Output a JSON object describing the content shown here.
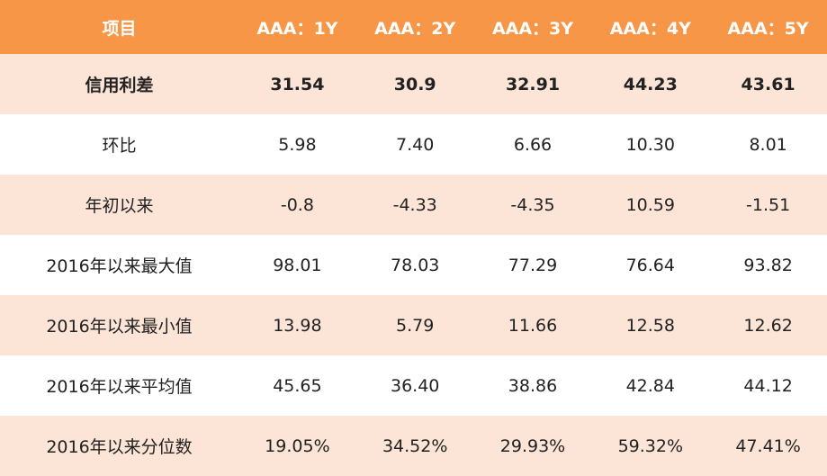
{
  "table": {
    "header": [
      "项目",
      "AAA：1Y",
      "AAA：2Y",
      "AAA：3Y",
      "AAA：4Y",
      "AAA：5Y"
    ],
    "rows": [
      [
        "信用利差",
        "31.54",
        "30.9",
        "32.91",
        "44.23",
        "43.61"
      ],
      [
        "环比",
        "5.98",
        "7.40",
        "6.66",
        "10.30",
        "8.01"
      ],
      [
        "年初以来",
        "-0.8",
        "-4.33",
        "-4.35",
        "10.59",
        "-1.51"
      ],
      [
        "2016年以来最大值",
        "98.01",
        "78.03",
        "77.29",
        "76.64",
        "93.82"
      ],
      [
        "2016年以来最小值",
        "13.98",
        "5.79",
        "11.66",
        "12.58",
        "12.62"
      ],
      [
        "2016年以来平均值",
        "45.65",
        "36.40",
        "38.86",
        "42.84",
        "44.12"
      ],
      [
        "2016年以来分位数",
        "19.05%",
        "34.52%",
        "29.93%",
        "59.32%",
        "47.41%"
      ]
    ]
  }
}
